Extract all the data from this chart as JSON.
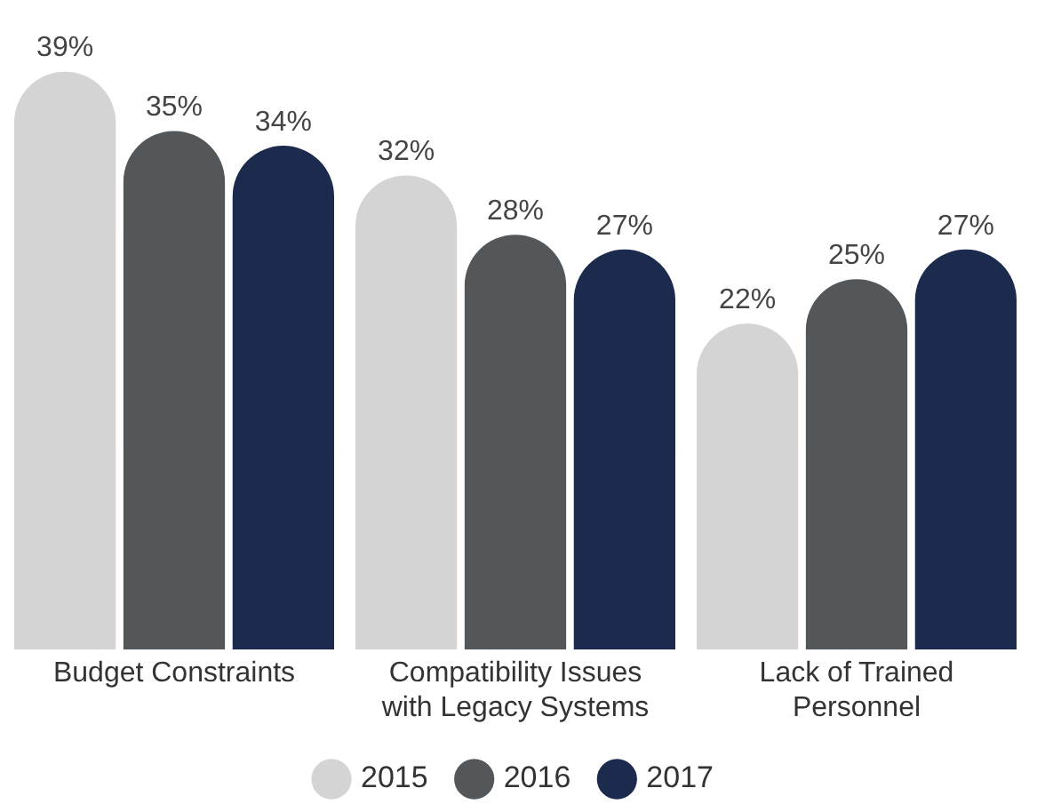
{
  "chart_data": {
    "type": "bar",
    "categories": [
      "Budget Constraints",
      "Compatibility Issues with Legacy Systems",
      "Lack of Trained Personnel"
    ],
    "series": [
      {
        "name": "2015",
        "color": "#d4d4d4",
        "values": [
          39,
          32,
          22
        ],
        "value_labels": [
          "39%",
          "32%",
          "22%"
        ]
      },
      {
        "name": "2016",
        "color": "#53575a",
        "values": [
          35,
          28,
          25
        ],
        "value_labels": [
          "35%",
          "28%",
          "25%"
        ]
      },
      {
        "name": "2017",
        "color": "#1b2a4d",
        "values": [
          34,
          27,
          27
        ],
        "value_labels": [
          "34%",
          "27%",
          "27%"
        ]
      }
    ],
    "legend": "bottom",
    "grid": false,
    "tick_labels": "x"
  }
}
